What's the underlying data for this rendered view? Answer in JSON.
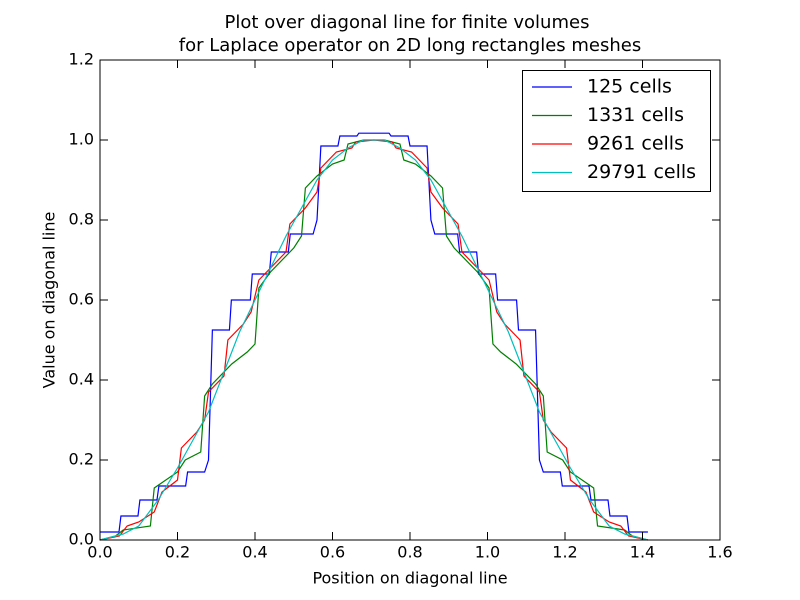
{
  "chart_data": {
    "type": "line",
    "title": [
      "Plot over diagonal line for finite volumes",
      "for Laplace operator on 2D long rectangles meshes"
    ],
    "xlabel": "Position on diagonal line",
    "ylabel": "Value on diagonal line",
    "xlim": [
      0,
      1.6
    ],
    "ylim": [
      0,
      1.2
    ],
    "xticks": [
      {
        "value": 0,
        "label": "0.0"
      },
      0.2,
      0.4,
      0.6,
      0.8,
      {
        "value": 1,
        "label": "1.0"
      },
      1.2,
      1.4,
      1.6
    ],
    "yticks": [
      {
        "value": 0,
        "label": "0.0"
      },
      0.2,
      0.4,
      0.6,
      0.8,
      {
        "value": 1,
        "label": "1.0"
      },
      1.2
    ],
    "grid": false,
    "legend": "upper right",
    "series": [
      {
        "name": "125 cells",
        "color": "#0000ff",
        "x": [
          0,
          0.049,
          0.054,
          0.098,
          0.103,
          0.147,
          0.152,
          0.221,
          0.226,
          0.27,
          0.28,
          0.29,
          0.334,
          0.339,
          0.388,
          0.393,
          0.437,
          0.442,
          0.486,
          0.491,
          0.55,
          0.56,
          0.57,
          0.614,
          0.619,
          0.663,
          0.668,
          0.707,
          0.746,
          0.751,
          0.795,
          0.8,
          0.844,
          0.854,
          0.864,
          0.923,
          0.928,
          0.972,
          0.977,
          1.021,
          1.026,
          1.075,
          1.08,
          1.124,
          1.134,
          1.144,
          1.188,
          1.193,
          1.262,
          1.267,
          1.311,
          1.316,
          1.36,
          1.365,
          1.414
        ],
        "values": [
          0.02,
          0.02,
          0.06,
          0.06,
          0.1,
          0.1,
          0.135,
          0.135,
          0.17,
          0.17,
          0.2,
          0.525,
          0.525,
          0.6,
          0.6,
          0.665,
          0.665,
          0.72,
          0.72,
          0.765,
          0.765,
          0.8,
          0.985,
          0.985,
          1.01,
          1.01,
          1.017,
          1.017,
          1.017,
          1.01,
          1.01,
          0.985,
          0.985,
          0.8,
          0.765,
          0.765,
          0.72,
          0.72,
          0.665,
          0.665,
          0.6,
          0.6,
          0.525,
          0.525,
          0.2,
          0.17,
          0.17,
          0.135,
          0.135,
          0.1,
          0.1,
          0.06,
          0.06,
          0.02,
          0.02
        ]
      },
      {
        "name": "1331 cells",
        "color": "#008000",
        "x": [
          0,
          0.04,
          0.06,
          0.13,
          0.14,
          0.2,
          0.22,
          0.26,
          0.27,
          0.29,
          0.34,
          0.38,
          0.4,
          0.41,
          0.44,
          0.5,
          0.52,
          0.53,
          0.56,
          0.6,
          0.63,
          0.64,
          0.68,
          0.707,
          0.734,
          0.774,
          0.784,
          0.814,
          0.854,
          0.884,
          0.894,
          0.914,
          0.974,
          1.004,
          1.014,
          1.034,
          1.074,
          1.124,
          1.144,
          1.154,
          1.194,
          1.214,
          1.274,
          1.284,
          1.354,
          1.374,
          1.414
        ],
        "values": [
          0,
          0.01,
          0.025,
          0.035,
          0.13,
          0.17,
          0.2,
          0.22,
          0.36,
          0.39,
          0.44,
          0.47,
          0.49,
          0.63,
          0.67,
          0.73,
          0.76,
          0.88,
          0.91,
          0.94,
          0.95,
          0.99,
          1.0,
          1.0,
          1.0,
          0.99,
          0.95,
          0.94,
          0.91,
          0.88,
          0.76,
          0.73,
          0.67,
          0.63,
          0.49,
          0.47,
          0.44,
          0.39,
          0.36,
          0.22,
          0.2,
          0.17,
          0.13,
          0.035,
          0.025,
          0.01,
          0
        ]
      },
      {
        "name": "9261 cells",
        "color": "#ff0000",
        "x": [
          0,
          0.05,
          0.07,
          0.1,
          0.14,
          0.16,
          0.2,
          0.21,
          0.25,
          0.27,
          0.28,
          0.32,
          0.33,
          0.37,
          0.39,
          0.41,
          0.45,
          0.48,
          0.49,
          0.53,
          0.56,
          0.57,
          0.61,
          0.65,
          0.66,
          0.707,
          0.754,
          0.764,
          0.804,
          0.844,
          0.854,
          0.884,
          0.924,
          0.934,
          0.964,
          1.004,
          1.024,
          1.044,
          1.084,
          1.094,
          1.134,
          1.144,
          1.164,
          1.204,
          1.214,
          1.254,
          1.274,
          1.314,
          1.344,
          1.364,
          1.414
        ],
        "values": [
          0,
          0.01,
          0.035,
          0.045,
          0.07,
          0.12,
          0.15,
          0.23,
          0.27,
          0.3,
          0.37,
          0.41,
          0.5,
          0.54,
          0.57,
          0.65,
          0.69,
          0.72,
          0.79,
          0.83,
          0.87,
          0.93,
          0.97,
          0.98,
          0.995,
          1.0,
          0.995,
          0.98,
          0.97,
          0.93,
          0.87,
          0.83,
          0.79,
          0.72,
          0.69,
          0.65,
          0.57,
          0.54,
          0.5,
          0.41,
          0.37,
          0.3,
          0.27,
          0.23,
          0.15,
          0.12,
          0.07,
          0.045,
          0.035,
          0.01,
          0
        ]
      },
      {
        "name": "29791 cells",
        "color": "#00bfbf",
        "x": [
          0,
          0.06,
          0.1,
          0.15,
          0.2,
          0.24,
          0.28,
          0.32,
          0.36,
          0.4,
          0.44,
          0.48,
          0.52,
          0.56,
          0.6,
          0.64,
          0.68,
          0.707,
          0.734,
          0.774,
          0.814,
          0.854,
          0.894,
          0.934,
          0.974,
          1.014,
          1.054,
          1.094,
          1.134,
          1.174,
          1.214,
          1.264,
          1.314,
          1.354,
          1.414
        ],
        "values": [
          0,
          0.015,
          0.035,
          0.1,
          0.18,
          0.25,
          0.32,
          0.42,
          0.52,
          0.6,
          0.68,
          0.76,
          0.83,
          0.9,
          0.95,
          0.98,
          1.0,
          1.0,
          1.0,
          0.98,
          0.95,
          0.9,
          0.83,
          0.76,
          0.68,
          0.6,
          0.52,
          0.42,
          0.32,
          0.25,
          0.18,
          0.1,
          0.035,
          0.015,
          0
        ]
      }
    ]
  }
}
